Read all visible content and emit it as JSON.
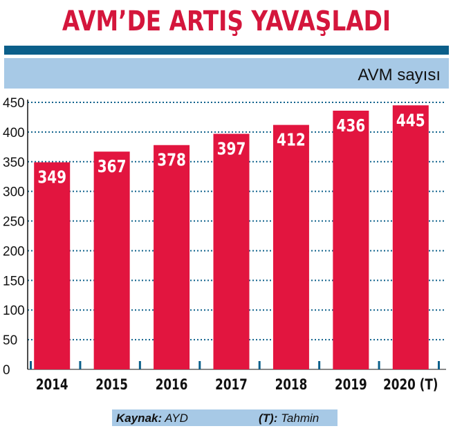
{
  "title": "AVM’DE ARTIŞ YAVAŞLADI",
  "colors": {
    "title": "#d4163c",
    "bar": "#e2153f",
    "header_bar": "#0b5f8a",
    "band": "#a7c9e6",
    "grid": "#0b5f8a"
  },
  "footer": {
    "source_key": "Kaynak:",
    "source_value": "AYD",
    "estimate_key": "(T):",
    "estimate_value": "Tahmin"
  },
  "chart_data": {
    "type": "bar",
    "ylabel": "AVM sayısı",
    "categories": [
      "2014",
      "2015",
      "2016",
      "2017",
      "2018",
      "2019",
      "2020 (T)"
    ],
    "values": [
      349,
      367,
      378,
      397,
      412,
      436,
      445
    ],
    "data_labels": [
      "349",
      "367",
      "378",
      "397",
      "412",
      "436",
      "445"
    ],
    "ylim": [
      0,
      450
    ],
    "yticks": [
      0,
      50,
      100,
      150,
      200,
      250,
      300,
      350,
      400,
      450
    ],
    "grid": "horizontal dotted"
  }
}
